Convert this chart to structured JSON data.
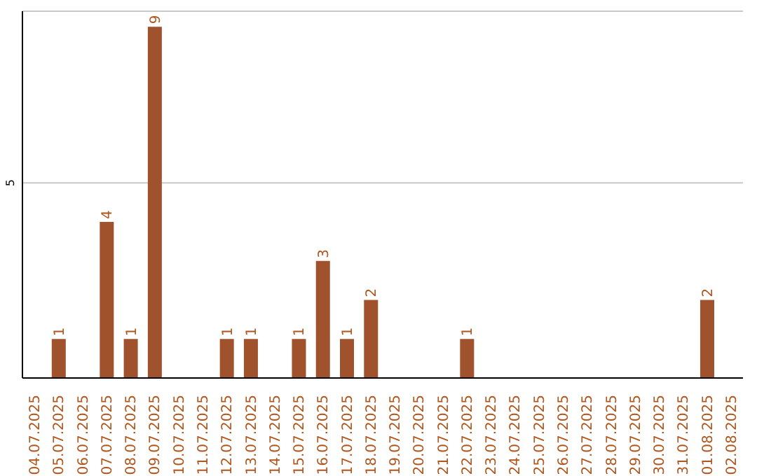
{
  "chart_data": {
    "type": "bar",
    "categories": [
      "04.07.2025",
      "05.07.2025",
      "06.07.2025",
      "07.07.2025",
      "08.07.2025",
      "09.07.2025",
      "10.07.2025",
      "11.07.2025",
      "12.07.2025",
      "13.07.2025",
      "14.07.2025",
      "15.07.2025",
      "16.07.2025",
      "17.07.2025",
      "18.07.2025",
      "19.07.2025",
      "20.07.2025",
      "21.07.2025",
      "22.07.2025",
      "23.07.2025",
      "24.07.2025",
      "25.07.2025",
      "26.07.2025",
      "27.07.2025",
      "28.07.2025",
      "29.07.2025",
      "30.07.2025",
      "31.07.2025",
      "01.08.2025",
      "02.08.2025"
    ],
    "values": [
      0,
      1,
      0,
      4,
      1,
      9,
      0,
      0,
      1,
      1,
      0,
      1,
      3,
      1,
      2,
      0,
      0,
      0,
      1,
      0,
      0,
      0,
      0,
      0,
      0,
      0,
      0,
      0,
      2,
      0
    ],
    "value_labels": [
      null,
      "1",
      null,
      "4",
      "1",
      "9",
      null,
      null,
      "1",
      "1",
      null,
      "1",
      "3",
      "1",
      "2",
      null,
      null,
      null,
      "1",
      null,
      null,
      null,
      null,
      null,
      null,
      null,
      null,
      null,
      "2",
      null
    ],
    "color": "#a0522d",
    "ylim": [
      0,
      9.4
    ],
    "yticks": [
      5
    ],
    "grid": "y"
  }
}
